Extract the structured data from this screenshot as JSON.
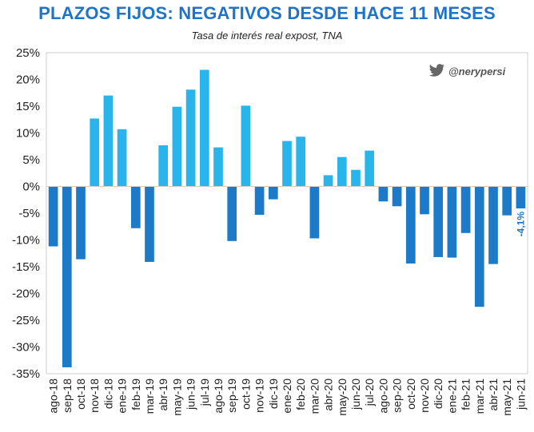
{
  "header": {
    "title": "PLAZOS FIJOS: NEGATIVOS DESDE HACE 11 MESES",
    "subtitle": "Tasa de interés real expost, TNA"
  },
  "watermark": {
    "handle": "@nerypersi",
    "icon": "twitter-bird-icon"
  },
  "colors": {
    "positive": "#29b5ec",
    "negative": "#1c7ac9",
    "title": "#1f74c7"
  },
  "chart_data": {
    "type": "bar",
    "title": "PLAZOS FIJOS: NEGATIVOS DESDE HACE 11 MESES",
    "subtitle": "Tasa de interés real expost, TNA",
    "ylim": [
      -35,
      25
    ],
    "yticks": [
      "25%",
      "20%",
      "15%",
      "10%",
      "5%",
      "0%",
      "-5%",
      "-10%",
      "-15%",
      "-20%",
      "-25%",
      "-30%",
      "-35%"
    ],
    "ytick_values": [
      25,
      20,
      15,
      10,
      5,
      0,
      -5,
      -10,
      -15,
      -20,
      -25,
      -30,
      -35
    ],
    "grid": false,
    "categories": [
      "ago-18",
      "sep-18",
      "oct-18",
      "nov-18",
      "dic-18",
      "ene-19",
      "feb-19",
      "mar-19",
      "abr-19",
      "may-19",
      "jun-19",
      "jul-19",
      "ago-19",
      "sep-19",
      "oct-19",
      "nov-19",
      "dic-19",
      "ene-20",
      "feb-20",
      "mar-20",
      "abr-20",
      "may-20",
      "jun-20",
      "jul-20",
      "ago-20",
      "sep-20",
      "oct-20",
      "nov-20",
      "dic-20",
      "ene-21",
      "feb-21",
      "mar-21",
      "abr-21",
      "may-21",
      "jun-21"
    ],
    "values": [
      -11.2,
      -33.8,
      -13.6,
      12.7,
      17.0,
      10.7,
      -7.8,
      -14.1,
      7.7,
      14.9,
      18.1,
      21.8,
      7.3,
      -10.2,
      15.1,
      -5.3,
      -2.4,
      8.5,
      9.3,
      -9.7,
      2.1,
      5.5,
      3.1,
      6.7,
      -2.8,
      -3.7,
      -14.4,
      -5.2,
      -13.2,
      -13.3,
      -8.7,
      -22.5,
      -14.5,
      -5.4,
      -4.1
    ],
    "data_labels": [
      {
        "category": "jun-21",
        "text": "-4,1%"
      }
    ]
  }
}
